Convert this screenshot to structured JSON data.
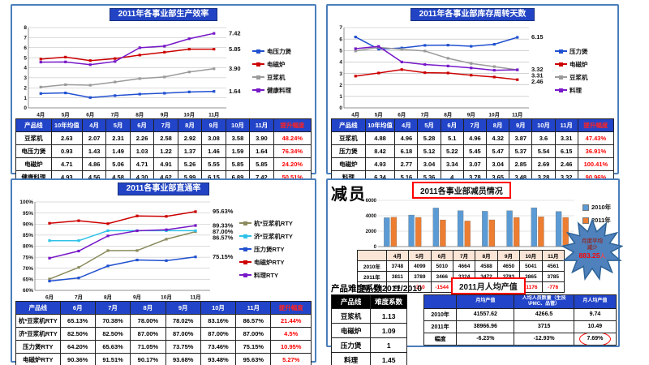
{
  "panels": {
    "production": {
      "title": "2011年各事业部生产效率",
      "table": {
        "headers": [
          "产品线",
          "10年均值",
          "4月",
          "5月",
          "6月",
          "7月",
          "8月",
          "9月",
          "10月",
          "11月",
          "提升幅度"
        ],
        "rows": [
          [
            "豆浆机",
            "2.63",
            "2.07",
            "2.31",
            "2.26",
            "2.58",
            "2.92",
            "3.08",
            "3.58",
            "3.90",
            "48.24%"
          ],
          [
            "电压力煲",
            "0.93",
            "1.43",
            "1.49",
            "1.03",
            "1.22",
            "1.37",
            "1.46",
            "1.59",
            "1.64",
            "76.34%"
          ],
          [
            "电磁炉",
            "4.71",
            "4.86",
            "5.06",
            "4.71",
            "4.91",
            "5.26",
            "5.55",
            "5.85",
            "5.85",
            "24.20%"
          ],
          [
            "健康料理",
            "4.93",
            "4.56",
            "4.58",
            "4.30",
            "4.62",
            "5.99",
            "6.15",
            "6.89",
            "7.42",
            "50.51%"
          ]
        ]
      }
    },
    "inventory": {
      "title": "2011年各事业部库存周转天数",
      "table": {
        "headers": [
          "产品线",
          "10年均值",
          "4月",
          "5月",
          "6月",
          "7月",
          "8月",
          "9月",
          "10月",
          "11月",
          "提升幅度"
        ],
        "rows": [
          [
            "豆浆机",
            "4.88",
            "4.96",
            "5.28",
            "5.1",
            "4.96",
            "4.32",
            "3.87",
            "3.6",
            "3.31",
            "47.43%"
          ],
          [
            "压力煲",
            "8.42",
            "6.18",
            "5.12",
            "5.22",
            "5.45",
            "5.47",
            "5.37",
            "5.54",
            "6.15",
            "36.91%"
          ],
          [
            "电磁炉",
            "4.93",
            "2.77",
            "3.04",
            "3.34",
            "3.07",
            "3.04",
            "2.85",
            "2.69",
            "2.46",
            "100.41%"
          ],
          [
            "料理",
            "6.34",
            "5.16",
            "5.36",
            "4",
            "3.78",
            "3.65",
            "3.48",
            "3.28",
            "3.32",
            "90.96%"
          ]
        ]
      }
    },
    "rty": {
      "title": "2011各事业部直通率",
      "table": {
        "headers": [
          "产品线",
          "6月",
          "7月",
          "8月",
          "9月",
          "10月",
          "11月",
          "提升幅度"
        ],
        "rows": [
          [
            "杭*豆浆机RTY",
            "65.13%",
            "70.38%",
            "78.00%",
            "78.02%",
            "83.16%",
            "86.57%",
            "21.44%"
          ],
          [
            "济*豆浆机RTY",
            "82.50%",
            "82.50%",
            "87.00%",
            "87.00%",
            "87.00%",
            "87.00%",
            "4.5%"
          ],
          [
            "压力煲RTY",
            "64.20%",
            "65.63%",
            "71.05%",
            "73.75%",
            "73.46%",
            "75.15%",
            "10.95%"
          ],
          [
            "电磁炉RTY",
            "90.36%",
            "91.51%",
            "90.17%",
            "93.68%",
            "93.48%",
            "95.63%",
            "5.27%"
          ],
          [
            "料理RTY",
            "74.58%",
            "77.79%",
            "84.66%",
            "86.97%",
            "87.43%",
            "89.33%",
            "14.75%"
          ]
        ]
      }
    },
    "reduction": {
      "heading": "减员",
      "chart_title": "2011各事业部减员情况",
      "table": {
        "headers": [
          "",
          "4月",
          "5月",
          "6月",
          "7月",
          "8月",
          "9月",
          "10月",
          "11月"
        ],
        "rows": [
          [
            "2010年",
            "3748",
            "4099",
            "5010",
            "4664",
            "4588",
            "4650",
            "5041",
            "4561"
          ],
          [
            "2011年",
            "3811",
            "3789",
            "3466",
            "3324",
            "3472",
            "3783",
            "3865",
            "3785"
          ],
          [
            "减少人员",
            "63",
            "-310",
            "-1544",
            "-1340",
            "-1116",
            "-867",
            "-1176",
            "-776"
          ]
        ]
      },
      "burst": {
        "line1": "月度平均",
        "line2": "减少",
        "value": "883.25",
        "unit": "人"
      },
      "difficulty_label": "产品难度系数2011/2010",
      "difficulty_table": {
        "headers": [
          "产品线",
          "难度系数"
        ],
        "rows": [
          [
            "豆浆机",
            "1.13"
          ],
          [
            "电磁炉",
            "1.09"
          ],
          [
            "压力煲",
            "1"
          ],
          [
            "料理",
            "1.45"
          ]
        ]
      },
      "output_title": "2011月人均产值",
      "output_table": {
        "headers": [
          "",
          "月均产值",
          "人均人员数量（生技\\PMC、品管）",
          "月人均产值"
        ],
        "rows": [
          [
            "2010年",
            "41557.62",
            "4266.5",
            "9.74"
          ],
          [
            "2011年",
            "38966.96",
            "3715",
            "10.49"
          ],
          [
            "幅度",
            "-6.23%",
            "-12.93%",
            "7.69%"
          ]
        ]
      }
    }
  },
  "colors": {
    "panel_border": "#4a7ebb",
    "header_blue": "#2244c8",
    "red": "#ff0000",
    "peach": "#FBE5D6",
    "bar_2010": "#5B9BD5",
    "bar_2011": "#ED7D31"
  },
  "chart_data": [
    {
      "id": "production",
      "type": "line",
      "title": "2011年各事业部生产效率",
      "categories": [
        "4月",
        "5月",
        "6月",
        "7月",
        "8月",
        "9月",
        "10月",
        "11月"
      ],
      "ylim": [
        0,
        8
      ],
      "ytick": 1,
      "percent": false,
      "grid": true,
      "legend_position": "right",
      "series": [
        {
          "name": "电压力煲",
          "color": "#2050d0",
          "values": [
            1.43,
            1.49,
            1.03,
            1.22,
            1.37,
            1.46,
            1.59,
            1.64
          ],
          "end_label": "1.64"
        },
        {
          "name": "电磁炉",
          "color": "#cc0000",
          "values": [
            4.86,
            5.06,
            4.71,
            4.91,
            5.26,
            5.55,
            5.85,
            5.85
          ],
          "end_label": "5.85"
        },
        {
          "name": "豆浆机",
          "color": "#9a9a9a",
          "values": [
            2.07,
            2.31,
            2.26,
            2.58,
            2.92,
            3.08,
            3.58,
            3.9
          ],
          "end_label": "3.90"
        },
        {
          "name": "健康料理",
          "color": "#7718c8",
          "values": [
            4.56,
            4.58,
            4.3,
            4.62,
            5.99,
            6.15,
            6.89,
            7.42
          ],
          "end_label": "7.42"
        }
      ]
    },
    {
      "id": "inventory",
      "type": "line",
      "title": "2011年各事业部库存周转天数",
      "categories": [
        "4月",
        "5月",
        "6月",
        "7月",
        "8月",
        "9月",
        "10月",
        "11月"
      ],
      "ylim": [
        0,
        7
      ],
      "ytick": 1,
      "percent": false,
      "grid": true,
      "legend_position": "right",
      "series": [
        {
          "name": "压力煲",
          "color": "#2050d0",
          "values": [
            6.18,
            5.12,
            5.22,
            5.45,
            5.47,
            5.37,
            5.54,
            6.15
          ],
          "end_label": "6.15"
        },
        {
          "name": "电磁炉",
          "color": "#cc0000",
          "values": [
            2.77,
            3.04,
            3.34,
            3.07,
            3.04,
            2.85,
            2.69,
            2.46
          ],
          "end_label": "2.46"
        },
        {
          "name": "豆浆机",
          "color": "#9a9a9a",
          "values": [
            4.96,
            5.28,
            5.1,
            4.96,
            4.32,
            3.87,
            3.6,
            3.31
          ],
          "end_label": "3.31"
        },
        {
          "name": "料理",
          "color": "#7718c8",
          "values": [
            5.16,
            5.36,
            4,
            3.78,
            3.65,
            3.48,
            3.28,
            3.32
          ],
          "end_label": "3.32",
          "end_label_color": "#7030A0"
        }
      ]
    },
    {
      "id": "rty",
      "type": "line",
      "title": "2011各事业部直通率",
      "categories": [
        "6月",
        "7月",
        "8月",
        "9月",
        "10月",
        "11月"
      ],
      "ylim": [
        60,
        100
      ],
      "ytick": 5,
      "percent": true,
      "grid": true,
      "legend_position": "right",
      "series": [
        {
          "name": "杭*豆浆机RTY",
          "color": "#8b8b5e",
          "values": [
            65.13,
            70.38,
            78.0,
            78.02,
            83.16,
            86.57
          ],
          "end_label": "86.57%",
          "end_label_color": "#92D050"
        },
        {
          "name": "济*豆浆机RTY",
          "color": "#2fc2e8",
          "values": [
            82.5,
            82.5,
            87.0,
            87.0,
            87.0,
            87.0
          ],
          "end_label": "87.00%"
        },
        {
          "name": "压力煲RTY",
          "color": "#2050d0",
          "values": [
            64.2,
            65.63,
            71.05,
            73.75,
            73.46,
            75.15
          ],
          "end_label": "75.15%"
        },
        {
          "name": "电磁炉RTY",
          "color": "#cc0000",
          "values": [
            90.36,
            91.51,
            90.17,
            93.68,
            93.48,
            95.63
          ],
          "end_label": "95.63%"
        },
        {
          "name": "料理RTY",
          "color": "#7718c8",
          "values": [
            74.58,
            77.79,
            84.66,
            86.97,
            87.43,
            89.33
          ],
          "end_label": "89.33%"
        }
      ]
    },
    {
      "id": "headcount",
      "type": "bar",
      "title": "2011各事业部减员情况",
      "categories": [
        "4月",
        "5月",
        "6月",
        "7月",
        "8月",
        "9月",
        "10月",
        "11月"
      ],
      "ylim": [
        0,
        6000
      ],
      "ytick": 2000,
      "grid": true,
      "legend_position": "right",
      "series": [
        {
          "name": "2010年",
          "color": "#5B9BD5",
          "values": [
            3748,
            4099,
            5010,
            4664,
            4588,
            4650,
            5041,
            4561
          ]
        },
        {
          "name": "2011年",
          "color": "#ED7D31",
          "values": [
            3811,
            3789,
            3466,
            3324,
            3472,
            3783,
            3865,
            3785
          ]
        }
      ]
    }
  ]
}
